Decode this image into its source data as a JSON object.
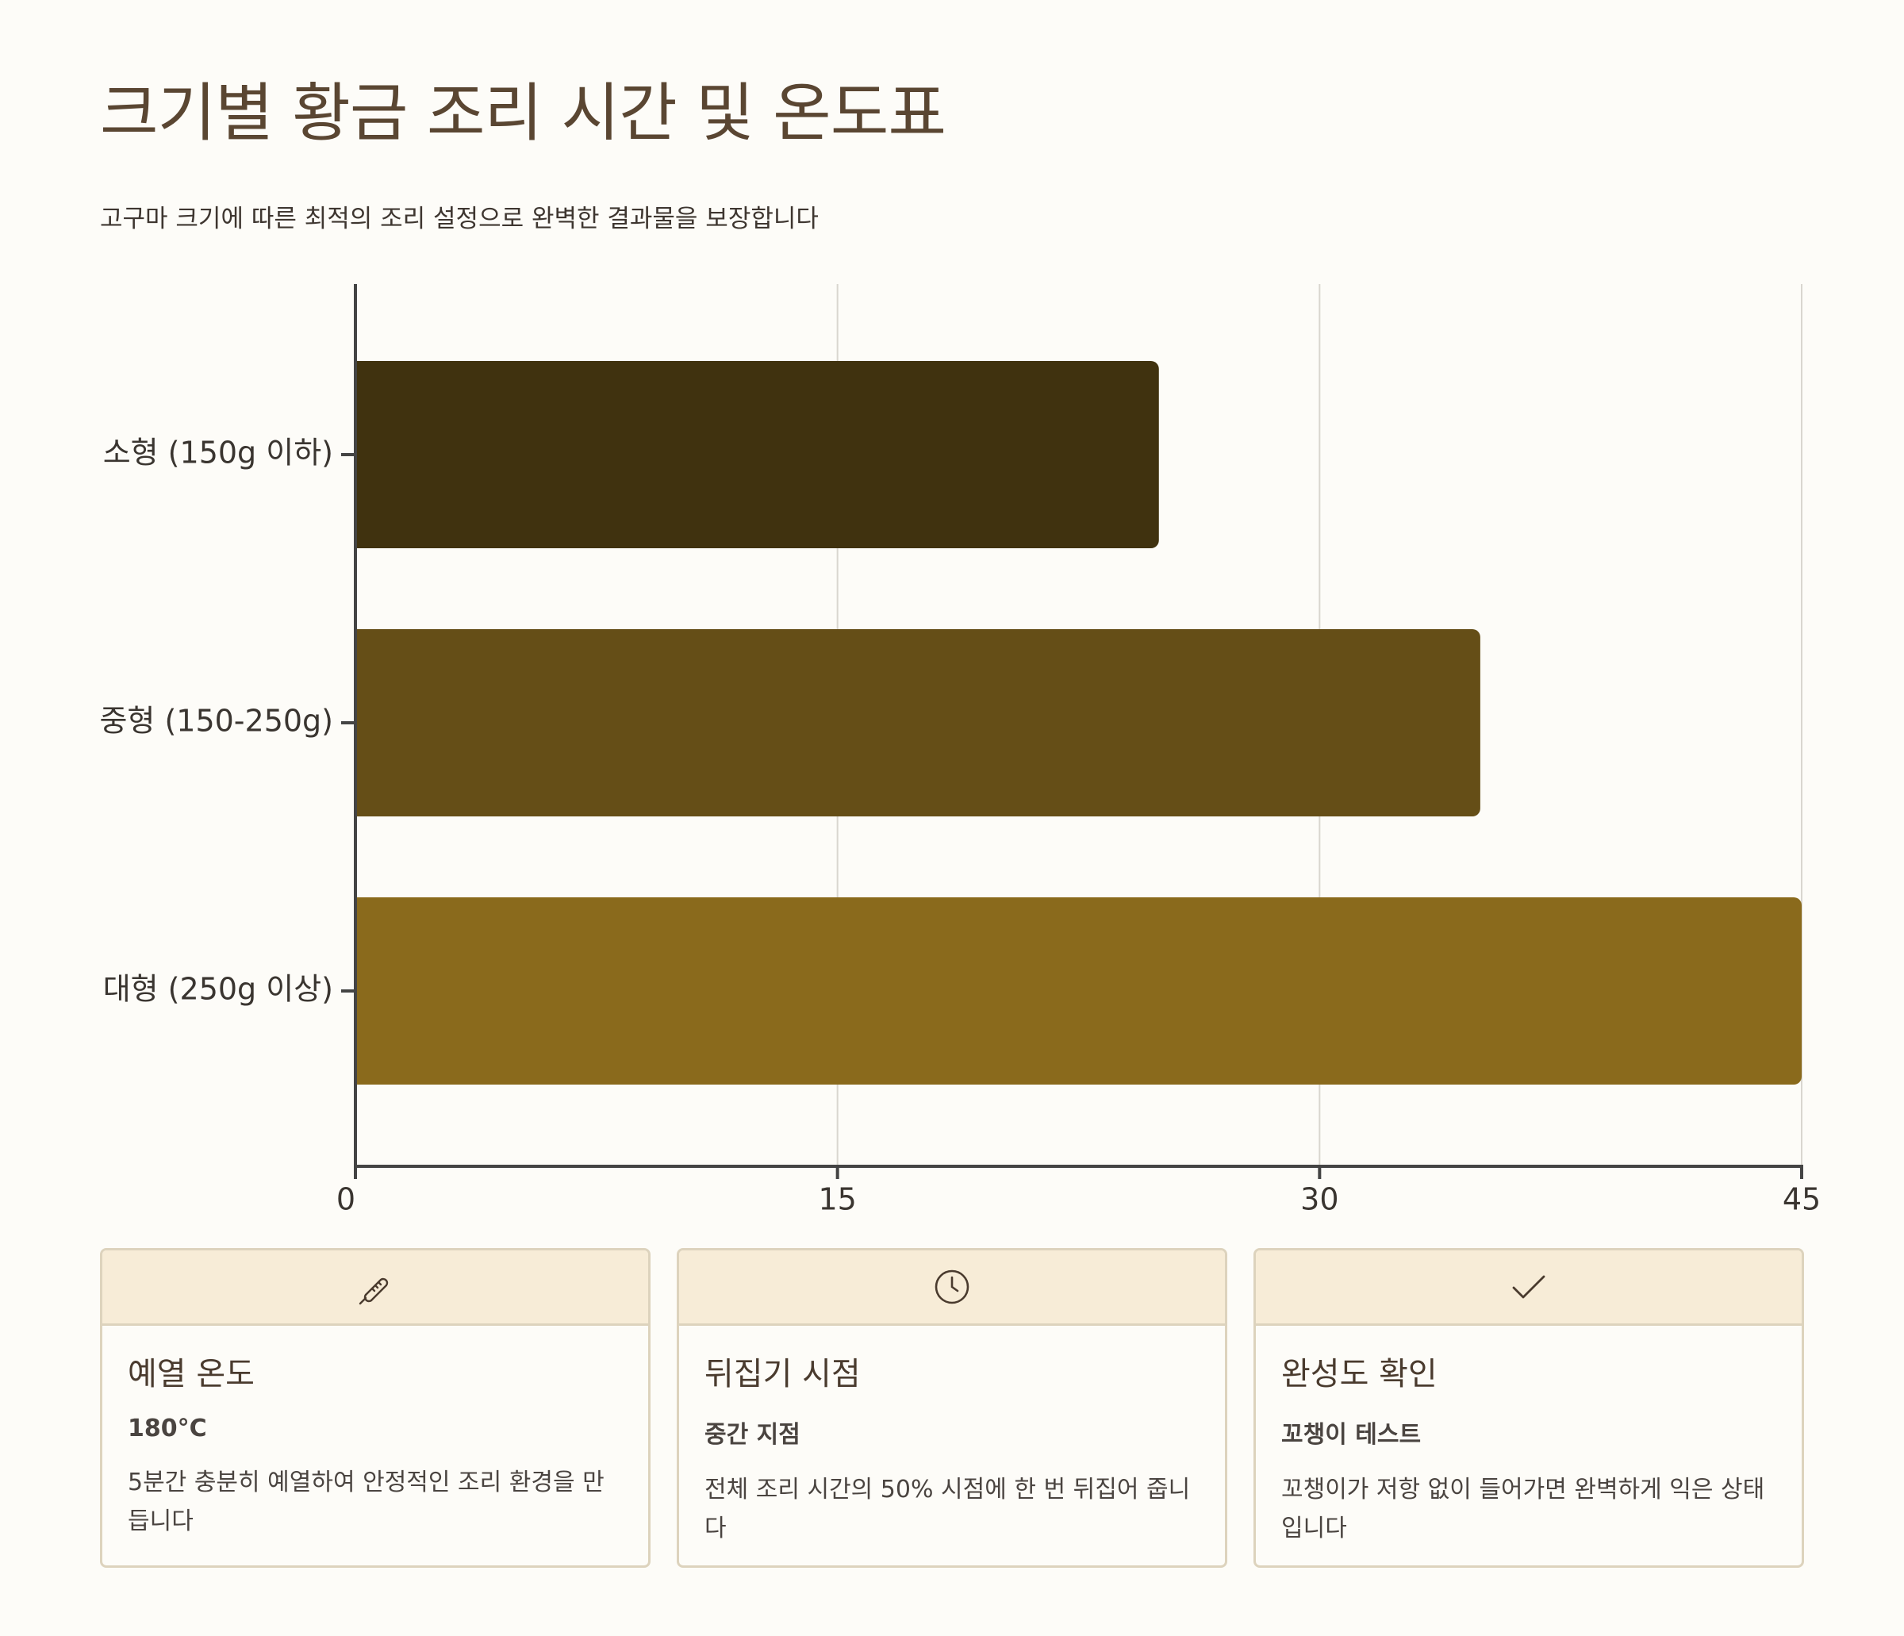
{
  "header": {
    "title": "크기별 황금 조리 시간 및 온도표",
    "subtitle": "고구마 크기에 따른 최적의 조리 설정으로 완벽한 결과물을 보장합니다"
  },
  "chart_data": {
    "type": "bar",
    "orientation": "horizontal",
    "categories": [
      "소형 (150g 이하)",
      "중형 (150-250g)",
      "대형 (250g 이상)"
    ],
    "values": [
      25,
      35,
      45
    ],
    "colors": [
      "#40320f",
      "#654e17",
      "#8a6a1c"
    ],
    "xlim": [
      0,
      45
    ],
    "xticks": [
      0,
      15,
      30,
      45
    ],
    "grid": true,
    "legend": "none"
  },
  "cards": [
    {
      "icon": "thermometer-icon",
      "title": "예열 온도",
      "value": "180°C",
      "desc": "5분간 충분히 예열하여 안정적인 조리 환경을 만듭니다"
    },
    {
      "icon": "clock-icon",
      "title": "뒤집기 시점",
      "value": "중간 지점",
      "desc": "전체 조리 시간의 50% 시점에 한 번 뒤집어 줍니다"
    },
    {
      "icon": "check-icon",
      "title": "완성도 확인",
      "value": "꼬챙이 테스트",
      "desc": "꼬챙이가 저항 없이 들어가면 완벽하게 익은 상태입니다"
    }
  ]
}
